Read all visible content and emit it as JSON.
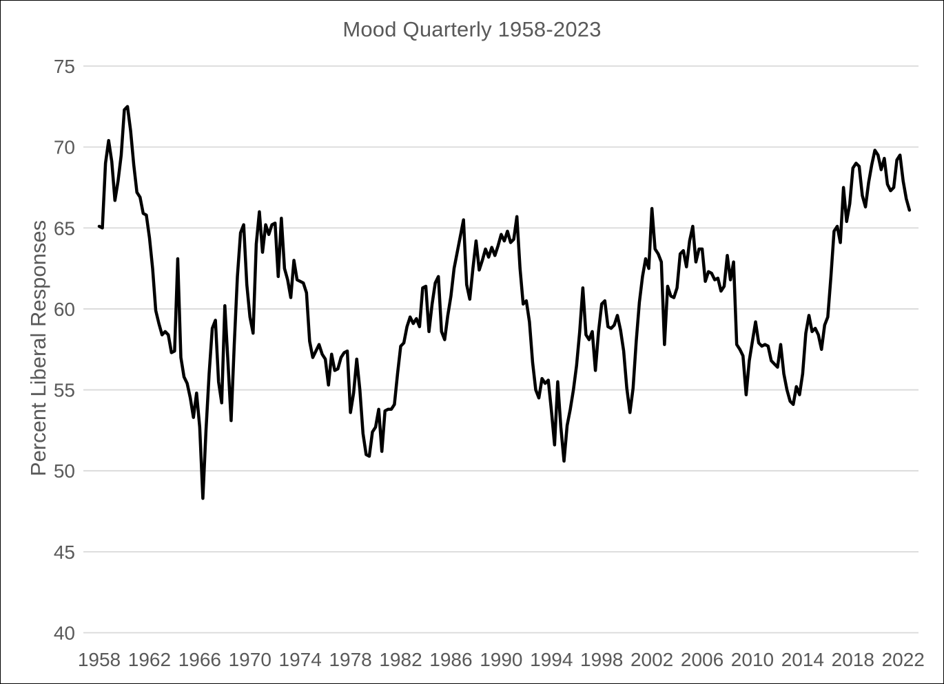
{
  "page": {
    "background": "#ffffff",
    "frame_color": "#000000"
  },
  "chart_data": {
    "type": "line",
    "title": "Mood Quarterly 1958-2023",
    "ylabel": "Percent Liberal Responses",
    "xlabel": "",
    "legend_position": "none",
    "grid": "horizontal",
    "text_color": "#595959",
    "gridline_color": "#d9d9d9",
    "line_color": "#000000",
    "line_width": 4.5,
    "ylim": [
      40,
      75
    ],
    "yticks": [
      40,
      45,
      50,
      55,
      60,
      65,
      70,
      75
    ],
    "xticks": [
      1958,
      1962,
      1966,
      1970,
      1974,
      1978,
      1982,
      1986,
      1990,
      1994,
      1998,
      2002,
      2006,
      2010,
      2014,
      2018,
      2022
    ],
    "x_start_year": 1958,
    "points_per_quarter": 1,
    "quarters_per_year": 4,
    "series": [
      {
        "name": "Percent Liberal Responses (quarterly)",
        "values": [
          65.1,
          65.0,
          69.0,
          70.4,
          69.1,
          66.7,
          67.9,
          69.5,
          72.3,
          72.5,
          71.0,
          68.9,
          67.2,
          66.9,
          65.9,
          65.8,
          64.4,
          62.5,
          59.9,
          59.1,
          58.4,
          58.6,
          58.4,
          57.3,
          57.4,
          63.1,
          57.0,
          55.8,
          55.4,
          54.5,
          53.3,
          54.8,
          52.7,
          48.3,
          52.5,
          56.0,
          58.8,
          59.3,
          55.5,
          54.2,
          60.2,
          56.7,
          53.1,
          57.8,
          62.0,
          64.7,
          65.2,
          61.5,
          59.5,
          58.5,
          64.0,
          66.0,
          63.5,
          65.2,
          64.6,
          65.2,
          65.3,
          62.0,
          65.6,
          62.5,
          61.8,
          60.7,
          63.0,
          61.8,
          61.7,
          61.6,
          61.0,
          58.0,
          57.0,
          57.4,
          57.8,
          57.2,
          56.9,
          55.3,
          57.2,
          56.2,
          56.3,
          57.0,
          57.3,
          57.4,
          53.6,
          54.8,
          56.9,
          55.0,
          52.3,
          51.0,
          50.9,
          52.4,
          52.7,
          53.8,
          51.2,
          53.7,
          53.8,
          53.8,
          54.1,
          56.0,
          57.7,
          57.9,
          58.9,
          59.5,
          59.1,
          59.4,
          58.9,
          61.3,
          61.4,
          58.6,
          60.3,
          61.6,
          62.0,
          58.6,
          58.1,
          59.6,
          60.8,
          62.5,
          63.5,
          64.5,
          65.5,
          61.5,
          60.6,
          62.5,
          64.2,
          62.4,
          63.0,
          63.7,
          63.2,
          63.8,
          63.3,
          63.9,
          64.6,
          64.2,
          64.8,
          64.1,
          64.3,
          65.7,
          62.5,
          60.3,
          60.5,
          59.2,
          56.7,
          55.0,
          54.5,
          55.7,
          55.4,
          55.6,
          53.7,
          51.6,
          55.5,
          52.7,
          50.6,
          52.8,
          53.8,
          55.0,
          56.5,
          58.6,
          61.3,
          58.4,
          58.1,
          58.6,
          56.2,
          58.6,
          60.3,
          60.5,
          58.9,
          58.8,
          59.0,
          59.6,
          58.7,
          57.4,
          55.1,
          53.6,
          55.1,
          58.0,
          60.4,
          62.0,
          63.1,
          62.5,
          66.2,
          63.7,
          63.4,
          62.9,
          57.8,
          61.4,
          60.8,
          60.7,
          61.3,
          63.4,
          63.6,
          62.6,
          64.2,
          65.1,
          62.9,
          63.7,
          63.7,
          61.7,
          62.3,
          62.2,
          61.8,
          61.9,
          61.1,
          61.4,
          63.3,
          61.8,
          62.9,
          57.8,
          57.5,
          57.1,
          54.7,
          56.8,
          58.0,
          59.2,
          57.9,
          57.7,
          57.8,
          57.7,
          56.8,
          56.6,
          56.4,
          57.8,
          56.0,
          55.0,
          54.3,
          54.1,
          55.2,
          54.7,
          56.0,
          58.5,
          59.6,
          58.6,
          58.8,
          58.4,
          57.5,
          59.0,
          59.5,
          62.0,
          64.8,
          65.1,
          64.1,
          67.5,
          65.4,
          66.5,
          68.7,
          69.0,
          68.8,
          67.0,
          66.3,
          67.8,
          68.9,
          69.8,
          69.5,
          68.6,
          69.3,
          67.7,
          67.3,
          67.5,
          69.2,
          69.5,
          67.9,
          66.8,
          66.1
        ]
      }
    ]
  }
}
